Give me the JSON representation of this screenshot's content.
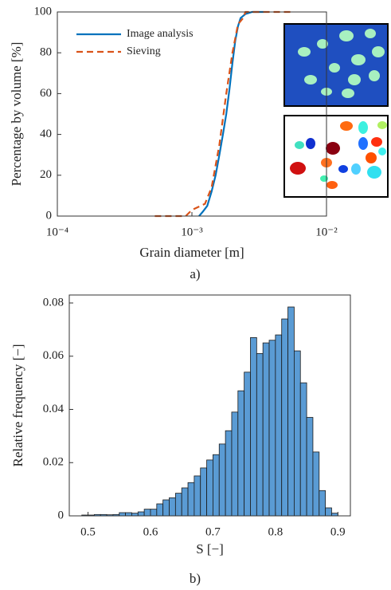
{
  "chart_data": [
    {
      "type": "line",
      "xscale": "log",
      "xlabel": "Grain diameter [m]",
      "ylabel": "Percentage by volume [%]",
      "caption": "a)",
      "xlim": [
        0.0001,
        0.01
      ],
      "xticks": [
        {
          "value": 0.0001,
          "label": "10⁻⁴"
        },
        {
          "value": 0.001,
          "label": "10⁻³"
        },
        {
          "value": 0.01,
          "label": "10⁻²"
        }
      ],
      "ylim": [
        0,
        100
      ],
      "yticks": [
        0,
        20,
        40,
        60,
        80,
        100
      ],
      "grid": false,
      "legend": "upper left",
      "series": [
        {
          "name": "Image analysis",
          "color": "#0072bd",
          "dash": false,
          "x": [
            0.00113,
            0.0012,
            0.0013,
            0.0014,
            0.0015,
            0.0016,
            0.0017,
            0.0018,
            0.0019,
            0.002,
            0.0021,
            0.0022,
            0.0023,
            0.0025,
            0.0028,
            0.0034
          ],
          "values": [
            0,
            2,
            5,
            12,
            20,
            30,
            40,
            50,
            62,
            75,
            86,
            93,
            97,
            99,
            100,
            100
          ]
        },
        {
          "name": "Sieving",
          "color": "#d95319",
          "dash": true,
          "x": [
            0.00053,
            0.0009,
            0.001,
            0.00125,
            0.0014,
            0.0016,
            0.0018,
            0.002,
            0.0022,
            0.0024,
            0.0025,
            0.0055
          ],
          "values": [
            0,
            0,
            3,
            6,
            14,
            35,
            60,
            80,
            94,
            97,
            100,
            100
          ]
        }
      ]
    },
    {
      "type": "histogram",
      "xlabel": "S [−]",
      "ylabel": "Relative frequency [−]",
      "caption": "b)",
      "color": "#5a9bd4",
      "xlim": [
        0.47,
        0.92
      ],
      "xticks": [
        0.5,
        0.6,
        0.7,
        0.8,
        0.9
      ],
      "ylim": [
        0,
        0.083
      ],
      "yticks": [
        0,
        0.02,
        0.04,
        0.06,
        0.08
      ],
      "bins": [
        0.49,
        0.5,
        0.51,
        0.52,
        0.53,
        0.54,
        0.55,
        0.56,
        0.57,
        0.58,
        0.59,
        0.6,
        0.61,
        0.62,
        0.63,
        0.64,
        0.65,
        0.66,
        0.67,
        0.68,
        0.69,
        0.7,
        0.71,
        0.72,
        0.73,
        0.74,
        0.75,
        0.76,
        0.77,
        0.78,
        0.79,
        0.8,
        0.81,
        0.82,
        0.83,
        0.84,
        0.85,
        0.86,
        0.87,
        0.88,
        0.89,
        0.9
      ],
      "values": [
        0.0003,
        0.0003,
        0.0005,
        0.0005,
        0.0004,
        0.0005,
        0.0012,
        0.0012,
        0.001,
        0.0015,
        0.0025,
        0.0025,
        0.0045,
        0.006,
        0.0068,
        0.0085,
        0.0105,
        0.0125,
        0.015,
        0.018,
        0.021,
        0.023,
        0.027,
        0.032,
        0.039,
        0.047,
        0.054,
        0.067,
        0.061,
        0.065,
        0.066,
        0.068,
        0.074,
        0.0785,
        0.062,
        0.05,
        0.037,
        0.024,
        0.0095,
        0.003,
        0.001
      ]
    }
  ]
}
